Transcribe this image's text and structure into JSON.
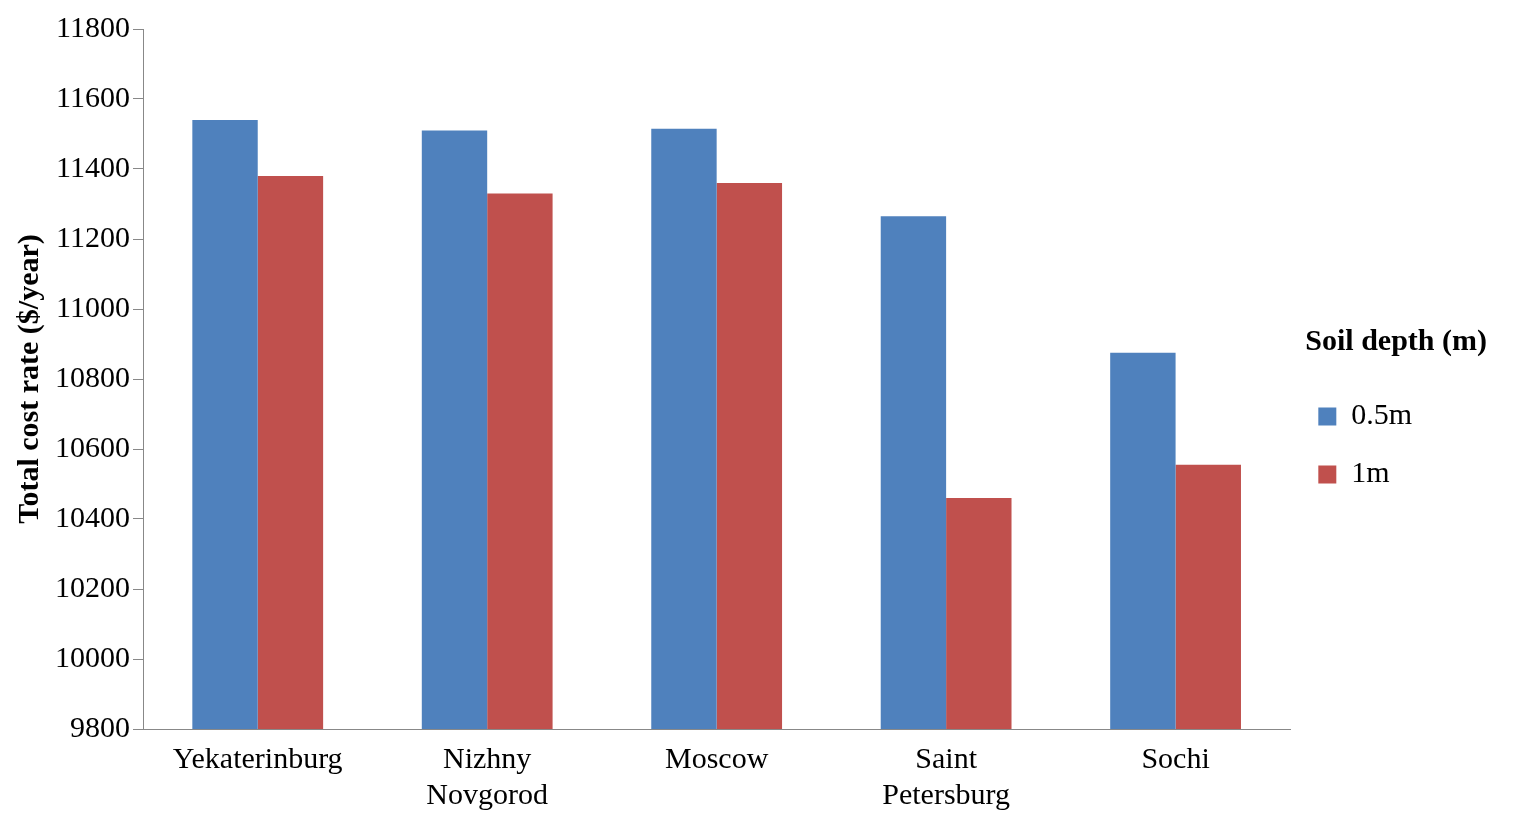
{
  "chart_data": {
    "type": "bar",
    "ylabel": "Total cost rate ($/year)",
    "legend_title": "Soil depth (m)",
    "categories": [
      "Yekaterinburg",
      "Nizhny Novgorod",
      "Moscow",
      "Saint Petersburg",
      "Sochi"
    ],
    "series": [
      {
        "name": "0.5m",
        "color": "#4f81bd",
        "values": [
          11540,
          11510,
          11515,
          11265,
          10875
        ]
      },
      {
        "name": "1m",
        "color": "#c0504d",
        "values": [
          11380,
          11330,
          11360,
          10460,
          10555
        ]
      }
    ],
    "ylim": [
      9800,
      11800
    ],
    "yticks": [
      9800,
      10000,
      10200,
      10400,
      10600,
      10800,
      11000,
      11200,
      11400,
      11600,
      11800
    ],
    "grid": false,
    "legend": "right"
  }
}
